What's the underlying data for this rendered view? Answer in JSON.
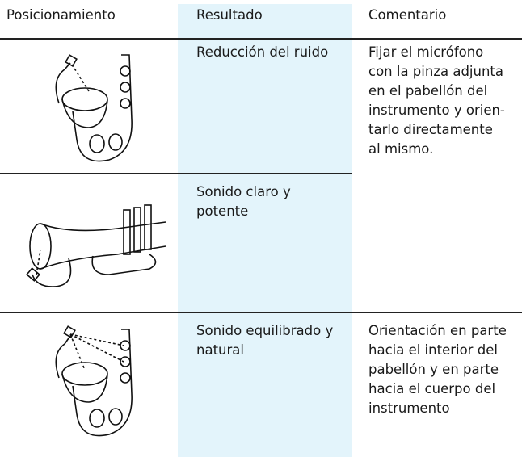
{
  "table": {
    "headers": [
      "Posicionamiento",
      "Resultado",
      "Comentario"
    ],
    "rows": [
      {
        "result": "Reducción del ruido",
        "comment": [
          "Fijar el micrófono",
          "con la pinza adjunta",
          "en el pabellón del",
          "instrumento y orien-",
          "tarlo directamente",
          "al mismo."
        ]
      },
      {
        "result": [
          "Sonido claro y",
          "potente"
        ]
      },
      {
        "result": [
          "Sonido equilibrado y",
          "natural"
        ],
        "comment": [
          "Orientación en parte",
          "hacia el interior del",
          "pabellón y en parte",
          "hacia el cuerpo del",
          "instrumento"
        ]
      }
    ]
  }
}
